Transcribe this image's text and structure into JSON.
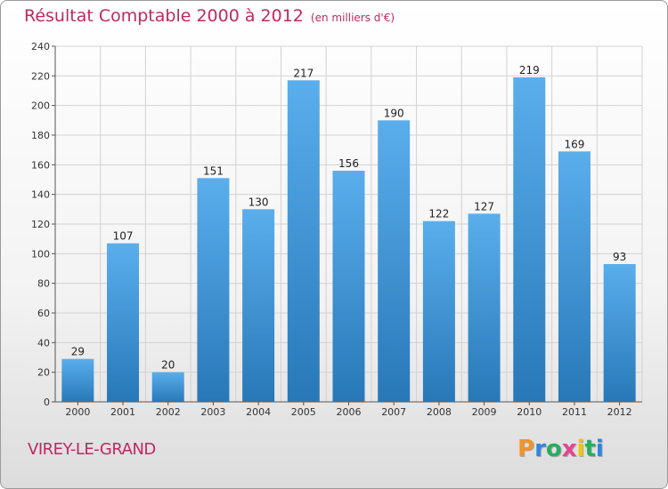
{
  "title": "Résultat Comptable 2000 à 2012",
  "unit_note": "(en milliers d'€)",
  "commune": "VIREY-LE-GRAND",
  "brand": {
    "letters": [
      "P",
      "r",
      "o",
      "x",
      "i",
      "t",
      "i"
    ],
    "colors": [
      "#f0932b",
      "#2e86de",
      "#27ae60",
      "#e84393",
      "#f1c40f",
      "#27ae60",
      "#2e86de"
    ]
  },
  "colors": {
    "bar_top": "#5aaeec",
    "bar_bottom": "#2878b8",
    "title": "#c0285f"
  },
  "chart_data": {
    "type": "bar",
    "title": "Résultat Comptable 2000 à 2012",
    "xlabel": "",
    "ylabel": "",
    "categories": [
      "2000",
      "2001",
      "2002",
      "2003",
      "2004",
      "2005",
      "2006",
      "2007",
      "2008",
      "2009",
      "2010",
      "2011",
      "2012"
    ],
    "values": [
      29,
      107,
      20,
      151,
      130,
      217,
      156,
      190,
      122,
      127,
      219,
      169,
      93
    ],
    "ylim": [
      0,
      240
    ],
    "yticks": [
      0,
      20,
      40,
      60,
      80,
      100,
      120,
      140,
      160,
      180,
      200,
      220,
      240
    ],
    "grid": true
  }
}
